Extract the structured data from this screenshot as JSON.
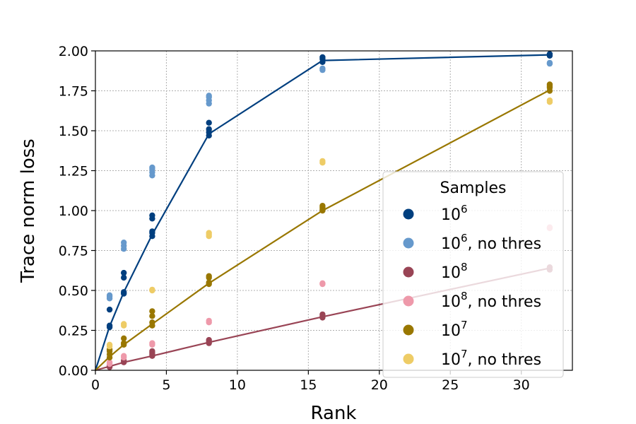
{
  "chart_data": {
    "type": "scatter",
    "xlabel": "Rank",
    "ylabel": "Trace norm loss",
    "xlim": [
      0,
      33.6
    ],
    "ylim": [
      0,
      2.0
    ],
    "xticks": [
      0,
      5,
      10,
      15,
      20,
      25,
      30
    ],
    "yticks": [
      0.0,
      0.25,
      0.5,
      0.75,
      1.0,
      1.25,
      1.5,
      1.75,
      2.0
    ],
    "xtick_labels": [
      "0",
      "5",
      "10",
      "15",
      "20",
      "25",
      "30"
    ],
    "ytick_labels": [
      "0.00",
      "0.25",
      "0.50",
      "0.75",
      "1.00",
      "1.25",
      "1.50",
      "1.75",
      "2.00"
    ],
    "grid": true,
    "legend_title": "Samples",
    "legend_position": "lower-right",
    "series": [
      {
        "key": "s1e6",
        "legend": {
          "base": "10",
          "exp": "6",
          "suffix": ""
        },
        "color": "#003f7f",
        "line": [
          [
            0,
            0
          ],
          [
            1,
            0.275
          ],
          [
            2,
            0.49
          ],
          [
            4,
            0.85
          ],
          [
            8,
            1.48
          ],
          [
            16,
            1.94
          ],
          [
            32,
            1.975
          ]
        ],
        "points": [
          [
            1,
            0.27
          ],
          [
            1,
            0.28
          ],
          [
            1,
            0.38
          ],
          [
            2,
            0.48
          ],
          [
            2,
            0.49
          ],
          [
            2,
            0.58
          ],
          [
            2,
            0.61
          ],
          [
            4,
            0.84
          ],
          [
            4,
            0.86
          ],
          [
            4,
            0.87
          ],
          [
            4,
            0.95
          ],
          [
            4,
            0.97
          ],
          [
            8,
            1.47
          ],
          [
            8,
            1.49
          ],
          [
            8,
            1.51
          ],
          [
            8,
            1.55
          ],
          [
            16,
            1.93
          ],
          [
            16,
            1.95
          ],
          [
            16,
            1.96
          ],
          [
            32,
            1.97
          ],
          [
            32,
            1.98
          ]
        ]
      },
      {
        "key": "s1e6_nothres",
        "legend": {
          "base": "10",
          "exp": "6",
          "suffix": ", no thres"
        },
        "color": "#6699cc",
        "line": null,
        "points": [
          [
            1,
            0.45
          ],
          [
            1,
            0.46
          ],
          [
            1,
            0.47
          ],
          [
            2,
            0.76
          ],
          [
            2,
            0.78
          ],
          [
            2,
            0.8
          ],
          [
            4,
            1.22
          ],
          [
            4,
            1.24
          ],
          [
            4,
            1.26
          ],
          [
            4,
            1.27
          ],
          [
            8,
            1.67
          ],
          [
            8,
            1.69
          ],
          [
            8,
            1.71
          ],
          [
            8,
            1.72
          ],
          [
            16,
            1.88
          ],
          [
            16,
            1.89
          ],
          [
            32,
            1.92
          ],
          [
            32,
            1.925
          ]
        ]
      },
      {
        "key": "s1e8",
        "legend": {
          "base": "10",
          "exp": "8",
          "suffix": ""
        },
        "color": "#994455",
        "line": [
          [
            0,
            0
          ],
          [
            1,
            0.025
          ],
          [
            2,
            0.05
          ],
          [
            4,
            0.09
          ],
          [
            8,
            0.175
          ],
          [
            16,
            0.335
          ],
          [
            32,
            0.64
          ]
        ],
        "points": [
          [
            1,
            0.02
          ],
          [
            1,
            0.03
          ],
          [
            2,
            0.05
          ],
          [
            2,
            0.06
          ],
          [
            4,
            0.09
          ],
          [
            4,
            0.1
          ],
          [
            4,
            0.11
          ],
          [
            4,
            0.12
          ],
          [
            8,
            0.17
          ],
          [
            8,
            0.18
          ],
          [
            8,
            0.19
          ],
          [
            16,
            0.33
          ],
          [
            16,
            0.34
          ],
          [
            16,
            0.35
          ],
          [
            32,
            0.63
          ],
          [
            32,
            0.645
          ]
        ]
      },
      {
        "key": "s1e8_nothres",
        "legend": {
          "base": "10",
          "exp": "8",
          "suffix": ", no thres"
        },
        "color": "#ee99aa",
        "line": null,
        "points": [
          [
            1,
            0.04
          ],
          [
            1,
            0.05
          ],
          [
            2,
            0.08
          ],
          [
            2,
            0.09
          ],
          [
            4,
            0.16
          ],
          [
            4,
            0.17
          ],
          [
            8,
            0.3
          ],
          [
            8,
            0.31
          ],
          [
            16,
            0.54
          ],
          [
            16,
            0.545
          ],
          [
            32,
            0.89
          ],
          [
            32,
            0.895
          ]
        ]
      },
      {
        "key": "s1e7",
        "legend": {
          "base": "10",
          "exp": "7",
          "suffix": ""
        },
        "color": "#997700",
        "line": [
          [
            0,
            0
          ],
          [
            1,
            0.085
          ],
          [
            2,
            0.16
          ],
          [
            4,
            0.29
          ],
          [
            8,
            0.545
          ],
          [
            16,
            1.0
          ],
          [
            32,
            1.755
          ]
        ],
        "points": [
          [
            1,
            0.08
          ],
          [
            1,
            0.1
          ],
          [
            1,
            0.12
          ],
          [
            1,
            0.13
          ],
          [
            2,
            0.16
          ],
          [
            2,
            0.17
          ],
          [
            2,
            0.2
          ],
          [
            4,
            0.28
          ],
          [
            4,
            0.3
          ],
          [
            4,
            0.34
          ],
          [
            4,
            0.37
          ],
          [
            8,
            0.54
          ],
          [
            8,
            0.55
          ],
          [
            8,
            0.58
          ],
          [
            8,
            0.59
          ],
          [
            16,
            1.0
          ],
          [
            16,
            1.01
          ],
          [
            16,
            1.02
          ],
          [
            16,
            1.03
          ],
          [
            32,
            1.75
          ],
          [
            32,
            1.77
          ],
          [
            32,
            1.78
          ],
          [
            32,
            1.79
          ]
        ]
      },
      {
        "key": "s1e7_nothres",
        "legend": {
          "base": "10",
          "exp": "7",
          "suffix": ", no thres"
        },
        "color": "#eecc66",
        "line": null,
        "points": [
          [
            1,
            0.15
          ],
          [
            1,
            0.16
          ],
          [
            2,
            0.28
          ],
          [
            2,
            0.29
          ],
          [
            4,
            0.5
          ],
          [
            4,
            0.505
          ],
          [
            8,
            0.84
          ],
          [
            8,
            0.85
          ],
          [
            8,
            0.86
          ],
          [
            16,
            1.3
          ],
          [
            16,
            1.31
          ],
          [
            32,
            1.68
          ],
          [
            32,
            1.69
          ]
        ]
      }
    ]
  }
}
